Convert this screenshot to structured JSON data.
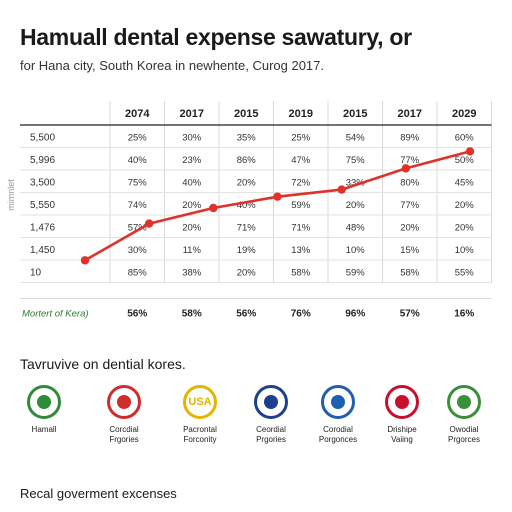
{
  "title": "Hamuall dental expense sawatury, or",
  "subtitle": "for Hana city, South Korea in newhente, Curog 2017.",
  "chart_data": {
    "type": "table",
    "columns": [
      "2074",
      "2017",
      "2015",
      "2019",
      "2015",
      "2017",
      "2029"
    ],
    "row_labels": [
      "5,500",
      "5,996",
      "3,500",
      "5,550",
      "1,476",
      "1,450",
      "10"
    ],
    "rows": [
      [
        "25%",
        "30%",
        "35%",
        "25%",
        "54%",
        "89%",
        "60%"
      ],
      [
        "40%",
        "23%",
        "86%",
        "47%",
        "75%",
        "77%",
        "50%"
      ],
      [
        "75%",
        "40%",
        "20%",
        "72%",
        "33%",
        "80%",
        "45%"
      ],
      [
        "74%",
        "20%",
        "40%",
        "59%",
        "20%",
        "77%",
        "20%"
      ],
      [
        "57%",
        "20%",
        "71%",
        "71%",
        "48%",
        "20%",
        "20%"
      ],
      [
        "30%",
        "11%",
        "19%",
        "13%",
        "10%",
        "15%",
        "10%"
      ],
      [
        "85%",
        "38%",
        "20%",
        "58%",
        "59%",
        "58%",
        "55%"
      ]
    ],
    "footer_label": "Mortert of Kera)",
    "footer_values": [
      "56%",
      "58%",
      "56%",
      "76%",
      "96%",
      "57%",
      "16%"
    ],
    "side_label": "mimnlet",
    "series": [
      {
        "values": [
          10,
          36,
          47,
          55,
          60,
          75,
          87
        ],
        "color": "#e0322a"
      }
    ],
    "ylim": [
      0,
      100
    ]
  },
  "section_title": "Tavruvive on dential kores.",
  "icons": [
    {
      "label": "Hamall",
      "icon": "hanja-seal-icon",
      "color": "#2e8b3a",
      "text": ""
    },
    {
      "label": "Corcdial\nFrgories",
      "icon": "red-emblem-icon",
      "color": "#d22b2b",
      "text": ""
    },
    {
      "label": "Pacrontal\nForconity",
      "icon": "usa-badge-icon",
      "color": "#e3b400",
      "text": "USA"
    },
    {
      "label": "Ceordial\nPrgories",
      "icon": "taeguk-emblem-icon",
      "color": "#1d3f8f",
      "text": ""
    },
    {
      "label": "Corodial\nPorgonces",
      "icon": "blue-emblem-icon",
      "color": "#1f5fb0",
      "text": ""
    },
    {
      "label": "Drishipe\nVaiing",
      "icon": "taeguk-flag-icon",
      "color": "#c8102e",
      "text": ""
    },
    {
      "label": "Owodial\nPrgorces",
      "icon": "green-crest-icon",
      "color": "#3a8f3a",
      "text": ""
    }
  ],
  "footer_title": "Recal goverment excenses"
}
